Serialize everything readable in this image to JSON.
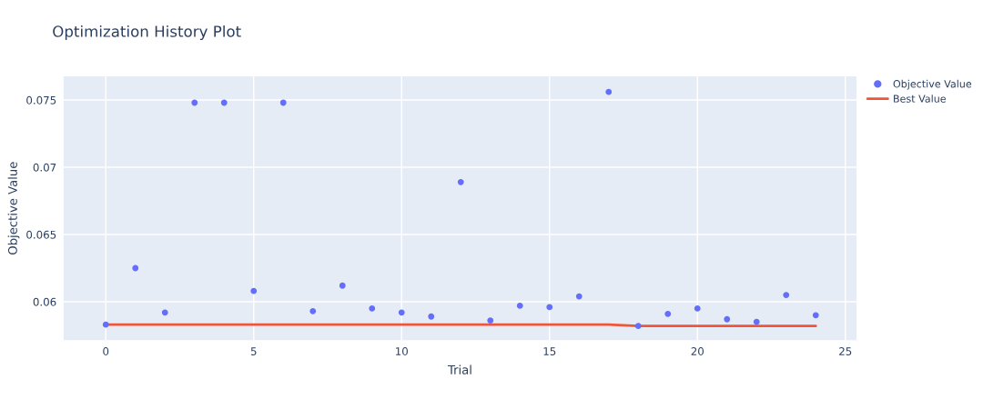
{
  "chart_data": {
    "type": "scatter",
    "title": "Optimization History Plot",
    "xlabel": "Trial",
    "ylabel": "Objective Value",
    "x": [
      0,
      1,
      2,
      3,
      4,
      5,
      6,
      7,
      8,
      9,
      10,
      11,
      12,
      13,
      14,
      15,
      16,
      17,
      18,
      19,
      20,
      21,
      22,
      23,
      24
    ],
    "series": [
      {
        "name": "Objective Value",
        "color": "#636efa",
        "marker": "circle",
        "values": [
          0.0583,
          0.0625,
          0.0592,
          0.0748,
          0.0748,
          0.0608,
          0.0748,
          0.0593,
          0.0612,
          0.0595,
          0.0592,
          0.0589,
          0.0689,
          0.0586,
          0.0597,
          0.0596,
          0.0604,
          0.0756,
          0.0582,
          0.0591,
          0.0595,
          0.0587,
          0.0585,
          0.0605,
          0.059
        ]
      },
      {
        "name": "Best Value",
        "type": "line",
        "color": "#ef553b",
        "values": [
          0.0583,
          0.0583,
          0.0583,
          0.0583,
          0.0583,
          0.0583,
          0.0583,
          0.0583,
          0.0583,
          0.0583,
          0.0583,
          0.0583,
          0.0583,
          0.0583,
          0.0583,
          0.0583,
          0.0583,
          0.0583,
          0.0582,
          0.0582,
          0.0582,
          0.0582,
          0.0582,
          0.0582,
          0.0582
        ]
      }
    ],
    "xlim": [
      -1.45,
      25.4
    ],
    "ylim": [
      0.0571,
      0.0768
    ],
    "xticks": [
      0,
      5,
      10,
      15,
      20,
      25
    ],
    "yticks": [
      0.06,
      0.065,
      0.07,
      0.075
    ],
    "grid": true,
    "legend": "top right"
  }
}
